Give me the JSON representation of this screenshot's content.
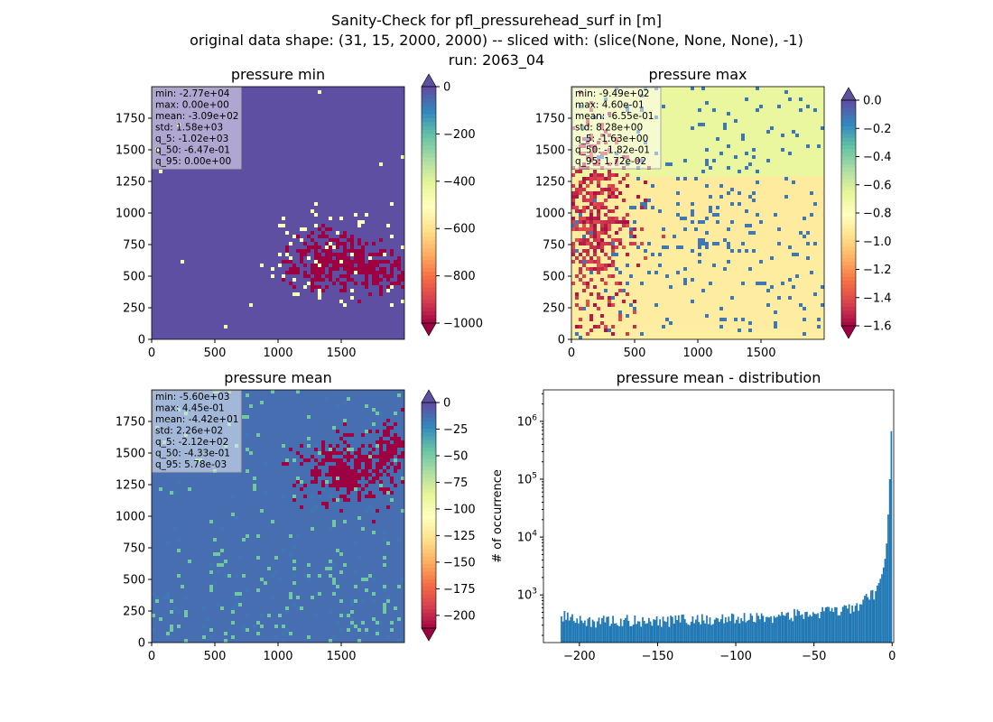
{
  "suptitle": {
    "line1": "Sanity-Check for pfl_pressurehead_surf in [m]",
    "line2": "original data shape: (31, 15, 2000, 2000) -- sliced with: (slice(None, None, None), -1)",
    "line3": "run: 2063_04"
  },
  "colors": {
    "cmap": "Spectral",
    "hist_bar": "#1f77b4"
  },
  "chart_data": [
    {
      "type": "heatmap",
      "title": "pressure min",
      "xlim": [
        0,
        2000
      ],
      "ylim": [
        0,
        2000
      ],
      "xticks": [
        0,
        500,
        1000,
        1500
      ],
      "yticks": [
        0,
        250,
        500,
        750,
        1000,
        1250,
        1500,
        1750
      ],
      "colorbar": {
        "range": [
          -1000,
          0
        ],
        "ticks": [
          0,
          -200,
          -400,
          -600,
          -800,
          -1000
        ],
        "extend": "both"
      },
      "dominant_value": 0,
      "stats": [
        "min: -2.77e+04",
        "max: 0.00e+00",
        "mean: -3.09e+02",
        "std: 1.58e+03",
        "q_5: -1.02e+03",
        "q_50: -6.47e-01",
        "q_95: 0.00e+00"
      ]
    },
    {
      "type": "heatmap",
      "title": "pressure max",
      "xlim": [
        0,
        2000
      ],
      "ylim": [
        0,
        2000
      ],
      "xticks": [
        0,
        500,
        1000,
        1500
      ],
      "yticks": [
        0,
        250,
        500,
        750,
        1000,
        1250,
        1500,
        1750
      ],
      "colorbar": {
        "range": [
          -1.6,
          0.0
        ],
        "ticks": [
          0.0,
          -0.2,
          -0.4,
          -0.6,
          -0.8,
          -1.0,
          -1.2,
          -1.4,
          -1.6
        ],
        "tick_labels": [
          "0.0",
          "−0.2",
          "−0.4",
          "−0.6",
          "−0.8",
          "−1.0",
          "−1.2",
          "−1.4",
          "−1.6"
        ],
        "extend": "both"
      },
      "stats": [
        "min: -9.49e+02",
        "max: 4.60e-01",
        "mean: -6.55e-01",
        "std: 8.28e+00",
        "q_5: -1.63e+00",
        "q_50: -1.82e-01",
        "q_95: 1.72e-02"
      ]
    },
    {
      "type": "heatmap",
      "title": "pressure mean",
      "xlim": [
        0,
        2000
      ],
      "ylim": [
        0,
        2000
      ],
      "xticks": [
        0,
        500,
        1000,
        1500
      ],
      "yticks": [
        0,
        250,
        500,
        750,
        1000,
        1250,
        1500,
        1750
      ],
      "colorbar": {
        "range": [
          -212,
          0
        ],
        "ticks": [
          0,
          -25,
          -50,
          -75,
          -100,
          -125,
          -150,
          -175,
          -200
        ],
        "extend": "both"
      },
      "stats": [
        "min: -5.60e+03",
        "max: 4.45e-01",
        "mean: -4.42e+01",
        "std: 2.26e+02",
        "q_5: -2.12e+02",
        "q_50: -4.33e-01",
        "q_95: 5.78e-03"
      ]
    },
    {
      "type": "bar",
      "title": "pressure mean - distribution",
      "xlabel": "",
      "ylabel": "# of occurrence",
      "xlim": [
        -223,
        1
      ],
      "ylim": [
        150,
        3500000
      ],
      "yscale": "log",
      "xticks": [
        -200,
        -150,
        -100,
        -50,
        0
      ],
      "yticks": [
        1000,
        10000,
        100000,
        1000000
      ],
      "ytick_labels": [
        {
          "base": "10",
          "exp": "3"
        },
        {
          "base": "10",
          "exp": "4"
        },
        {
          "base": "10",
          "exp": "5"
        },
        {
          "base": "10",
          "exp": "6"
        }
      ],
      "bins": {
        "start": -212,
        "width": 1,
        "count": 212
      },
      "values_approx": {
        "-212": 480,
        "-200": 350,
        "-150": 370,
        "-100": 390,
        "-50": 480,
        "-30": 550,
        "-20": 700,
        "-15": 900,
        "-10": 1200,
        "-6": 2500,
        "-4": 5000,
        "-3": 12000,
        "-2": 50000,
        "-1": 200000,
        "0": 2300000
      }
    }
  ]
}
